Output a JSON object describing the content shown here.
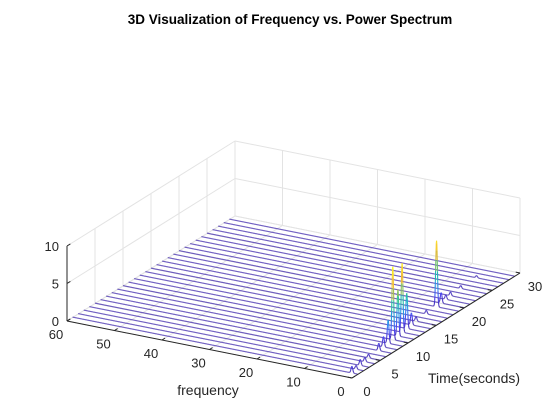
{
  "chart_data": {
    "type": "line",
    "subtype": "waterfall-3d",
    "title": "3D Visualization of Frequency vs. Power Spectrum",
    "xlabel": "frequency",
    "ylabel": "Time(seconds)",
    "zlabel": "",
    "xlim": [
      0,
      60
    ],
    "ylim": [
      0,
      30
    ],
    "zlim": [
      0,
      10
    ],
    "x_ticks": [
      0,
      10,
      20,
      30,
      40,
      50,
      60
    ],
    "y_ticks": [
      0,
      5,
      10,
      15,
      20,
      25,
      30
    ],
    "z_ticks": [
      0,
      5,
      10
    ],
    "grid": true,
    "series_count": 29,
    "time_values": [
      1,
      2,
      3,
      4,
      5,
      6,
      7,
      8,
      9,
      10,
      11,
      12,
      13,
      14,
      15,
      16,
      17,
      18,
      19,
      20,
      21,
      22,
      23,
      24,
      25,
      26,
      27,
      28,
      29
    ],
    "baseline_power": 0.05,
    "peaks": [
      {
        "time": 1,
        "frequency": 1.2,
        "power": 0.9
      },
      {
        "time": 2,
        "frequency": 1.5,
        "power": 0.5
      },
      {
        "time": 3,
        "frequency": 1.8,
        "power": 0.8
      },
      {
        "time": 4,
        "frequency": 2.0,
        "power": 0.6
      },
      {
        "time": 5,
        "frequency": 2.4,
        "power": 0.5
      },
      {
        "time": 7,
        "frequency": 2.6,
        "power": 1.0
      },
      {
        "time": 8,
        "frequency": 2.8,
        "power": 1.4
      },
      {
        "time": 9,
        "frequency": 3.0,
        "power": 3.1
      },
      {
        "time": 10,
        "frequency": 3.2,
        "power": 9.7
      },
      {
        "time": 11,
        "frequency": 3.3,
        "power": 6.2
      },
      {
        "time": 12,
        "frequency": 3.6,
        "power": 9.2
      },
      {
        "time": 13,
        "frequency": 3.8,
        "power": 4.7
      },
      {
        "time": 14,
        "frequency": 4.0,
        "power": 1.6
      },
      {
        "time": 15,
        "frequency": 4.2,
        "power": 0.6
      },
      {
        "time": 17,
        "frequency": 4.4,
        "power": 0.5
      },
      {
        "time": 19,
        "frequency": 4.6,
        "power": 8.8
      },
      {
        "time": 20,
        "frequency": 4.8,
        "power": 1.4
      },
      {
        "time": 21,
        "frequency": 5.0,
        "power": 0.6
      },
      {
        "time": 22,
        "frequency": 5.2,
        "power": 0.5
      },
      {
        "time": 24,
        "frequency": 5.4,
        "power": 0.4
      },
      {
        "time": 27,
        "frequency": 5.6,
        "power": 0.3
      }
    ],
    "colormap": [
      "#3e26a8",
      "#4a41f2",
      "#2f88f4",
      "#18b1cb",
      "#31c793",
      "#a5be51",
      "#f1bb36",
      "#f9d92c",
      "#f9fb14"
    ]
  }
}
